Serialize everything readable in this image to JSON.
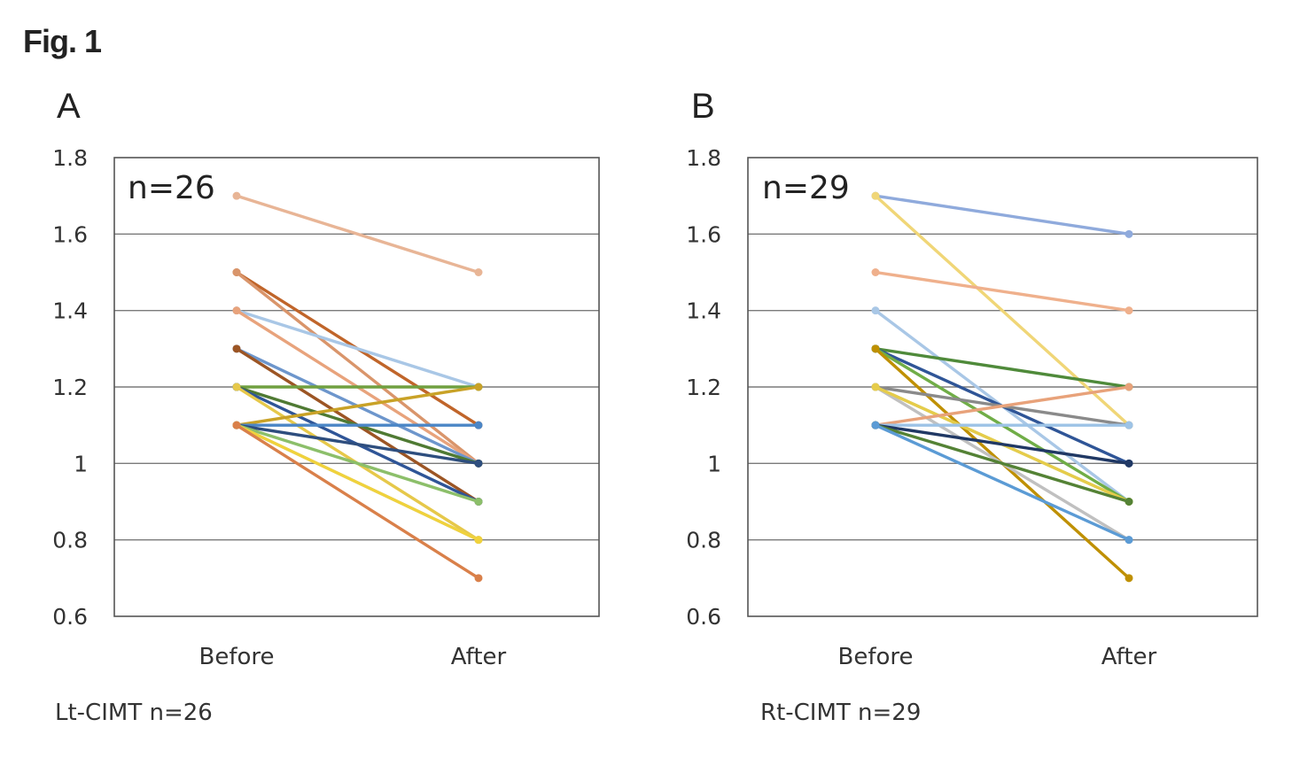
{
  "figure_label": "Fig. 1",
  "colors": {
    "frame": "#555555",
    "grid": "#7a7a7a"
  },
  "chart_data": [
    {
      "type": "line",
      "panel_label": "A",
      "annotation": "n=26",
      "caption": "Lt-CIMT n=26",
      "categories": [
        "Before",
        "After"
      ],
      "ylim": [
        0.6,
        1.8
      ],
      "yticks": [
        0.6,
        0.8,
        1.0,
        1.2,
        1.4,
        1.6,
        1.8
      ],
      "ytick_labels": [
        "0.6",
        "0.8",
        "1",
        "1.2",
        "1.4",
        "1.6",
        "1.8"
      ],
      "grid": true,
      "series": [
        {
          "values": [
            1.7,
            1.5
          ],
          "color": "#e8b596"
        },
        {
          "values": [
            1.5,
            1.1
          ],
          "color": "#c0652a"
        },
        {
          "values": [
            1.5,
            1.0
          ],
          "color": "#d9956b"
        },
        {
          "values": [
            1.4,
            1.2
          ],
          "color": "#a9c7e6"
        },
        {
          "values": [
            1.4,
            1.0
          ],
          "color": "#e8a37c"
        },
        {
          "values": [
            1.3,
            1.0
          ],
          "color": "#6d96cc"
        },
        {
          "values": [
            1.3,
            0.9
          ],
          "color": "#9c5524"
        },
        {
          "values": [
            1.2,
            1.2
          ],
          "color": "#70a040"
        },
        {
          "values": [
            1.2,
            1.0
          ],
          "color": "#4f7a33"
        },
        {
          "values": [
            1.2,
            0.9
          ],
          "color": "#2f5597"
        },
        {
          "values": [
            1.2,
            0.8
          ],
          "color": "#e6c84a"
        },
        {
          "values": [
            1.1,
            1.2
          ],
          "color": "#c9a227"
        },
        {
          "values": [
            1.1,
            1.1
          ],
          "color": "#4b86c6"
        },
        {
          "values": [
            1.1,
            1.0
          ],
          "color": "#2e4e7e"
        },
        {
          "values": [
            1.1,
            0.9
          ],
          "color": "#8cbf6a"
        },
        {
          "values": [
            1.1,
            0.8
          ],
          "color": "#bdbdbd"
        },
        {
          "values": [
            1.1,
            0.8
          ],
          "color": "#f0d23c"
        },
        {
          "values": [
            1.1,
            0.7
          ],
          "color": "#d9804a"
        }
      ]
    },
    {
      "type": "line",
      "panel_label": "B",
      "annotation": "n=29",
      "caption": "Rt-CIMT n=29",
      "categories": [
        "Before",
        "After"
      ],
      "ylim": [
        0.6,
        1.8
      ],
      "yticks": [
        0.6,
        0.8,
        1.0,
        1.2,
        1.4,
        1.6,
        1.8
      ],
      "ytick_labels": [
        "0.6",
        "0.8",
        "1",
        "1.2",
        "1.4",
        "1.6",
        "1.8"
      ],
      "grid": true,
      "series": [
        {
          "values": [
            1.7,
            1.6
          ],
          "color": "#8faadc"
        },
        {
          "values": [
            1.7,
            1.1
          ],
          "color": "#f0d677"
        },
        {
          "values": [
            1.5,
            1.4
          ],
          "color": "#efb08c"
        },
        {
          "values": [
            1.4,
            0.9
          ],
          "color": "#a9c7e6"
        },
        {
          "values": [
            1.3,
            1.2
          ],
          "color": "#4f8a3a"
        },
        {
          "values": [
            1.3,
            1.0
          ],
          "color": "#2f5597"
        },
        {
          "values": [
            1.3,
            0.9
          ],
          "color": "#70ad47"
        },
        {
          "values": [
            1.3,
            0.7
          ],
          "color": "#bf9000"
        },
        {
          "values": [
            1.2,
            1.1
          ],
          "color": "#8a8a8a"
        },
        {
          "values": [
            1.2,
            0.9
          ],
          "color": "#a9d18e"
        },
        {
          "values": [
            1.2,
            0.8
          ],
          "color": "#c0c0c0"
        },
        {
          "values": [
            1.2,
            0.9
          ],
          "color": "#e6cc4a"
        },
        {
          "values": [
            1.1,
            1.2
          ],
          "color": "#e8a27a"
        },
        {
          "values": [
            1.1,
            1.1
          ],
          "color": "#9dc3e6"
        },
        {
          "values": [
            1.1,
            1.0
          ],
          "color": "#203864"
        },
        {
          "values": [
            1.1,
            0.9
          ],
          "color": "#548235"
        },
        {
          "values": [
            1.1,
            0.8
          ],
          "color": "#5b9bd5"
        }
      ]
    }
  ]
}
